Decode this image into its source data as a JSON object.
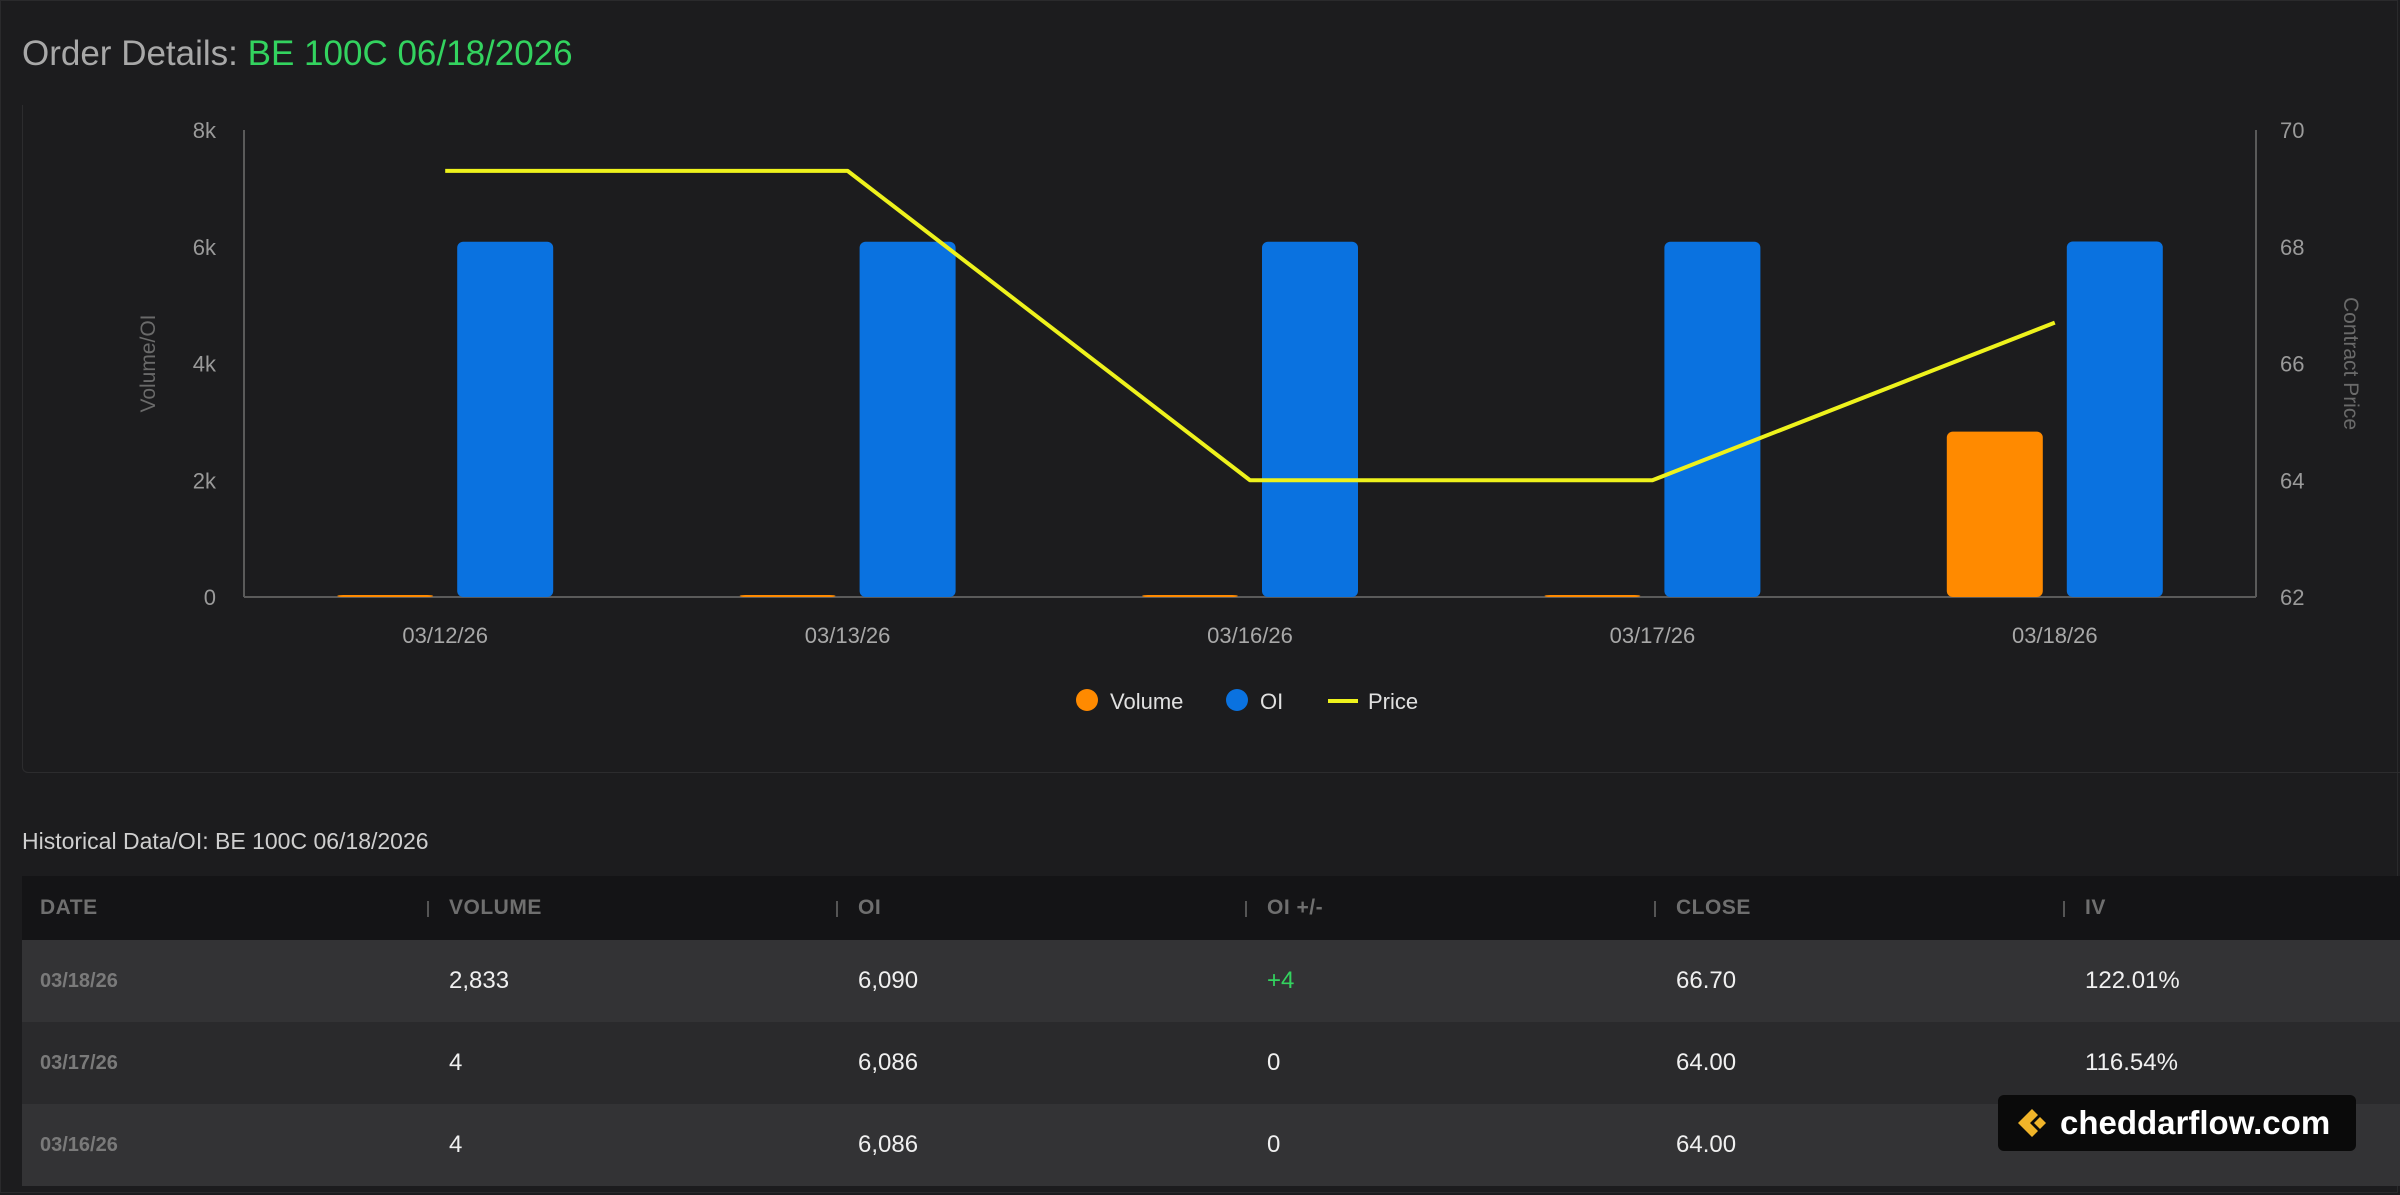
{
  "header": {
    "prefix": "Order Details:",
    "contract": "BE 100C 06/18/2026"
  },
  "colors": {
    "volume": "#ff8a00",
    "oi": "#0a72e0",
    "price": "#eef21c",
    "accent": "#33d35f"
  },
  "chart_data": {
    "type": "bar",
    "categories": [
      "03/12/26",
      "03/13/26",
      "03/16/26",
      "03/17/26",
      "03/18/26"
    ],
    "series": [
      {
        "name": "Volume",
        "type": "bar",
        "axis": "left",
        "values": [
          0,
          0,
          4,
          4,
          2833
        ]
      },
      {
        "name": "OI",
        "type": "bar",
        "axis": "left",
        "values": [
          6086,
          6086,
          6086,
          6086,
          6090
        ]
      },
      {
        "name": "Price",
        "type": "line",
        "axis": "right",
        "values": [
          69.3,
          69.3,
          64.0,
          64.0,
          66.7
        ]
      }
    ],
    "ylabel": "Volume/OI",
    "ylabel_right": "Contract Price",
    "ylim": [
      0,
      8000
    ],
    "yticks": [
      "0",
      "2k",
      "4k",
      "6k",
      "8k"
    ],
    "ylim_right": [
      62,
      70
    ],
    "yticks_right": [
      "62",
      "64",
      "66",
      "68",
      "70"
    ],
    "legend": [
      {
        "label": "Volume",
        "marker": "dot",
        "color": "#ff8a00"
      },
      {
        "label": "OI",
        "marker": "dot",
        "color": "#0a72e0"
      },
      {
        "label": "Price",
        "marker": "line",
        "color": "#eef21c"
      }
    ],
    "legend_position": "bottom-center",
    "grid": false
  },
  "table": {
    "title": "Historical Data/OI: BE 100C 06/18/2026",
    "columns": [
      "DATE",
      "VOLUME",
      "OI",
      "OI +/-",
      "CLOSE",
      "IV"
    ],
    "rows": [
      [
        "03/18/26",
        "2,833",
        "6,090",
        "+4",
        "66.70",
        "122.01%"
      ],
      [
        "03/17/26",
        "4",
        "6,086",
        "0",
        "64.00",
        "116.54%"
      ],
      [
        "03/16/26",
        "4",
        "6,086",
        "0",
        "64.00",
        ""
      ]
    ]
  },
  "badge": {
    "text": "cheddarflow.com"
  }
}
